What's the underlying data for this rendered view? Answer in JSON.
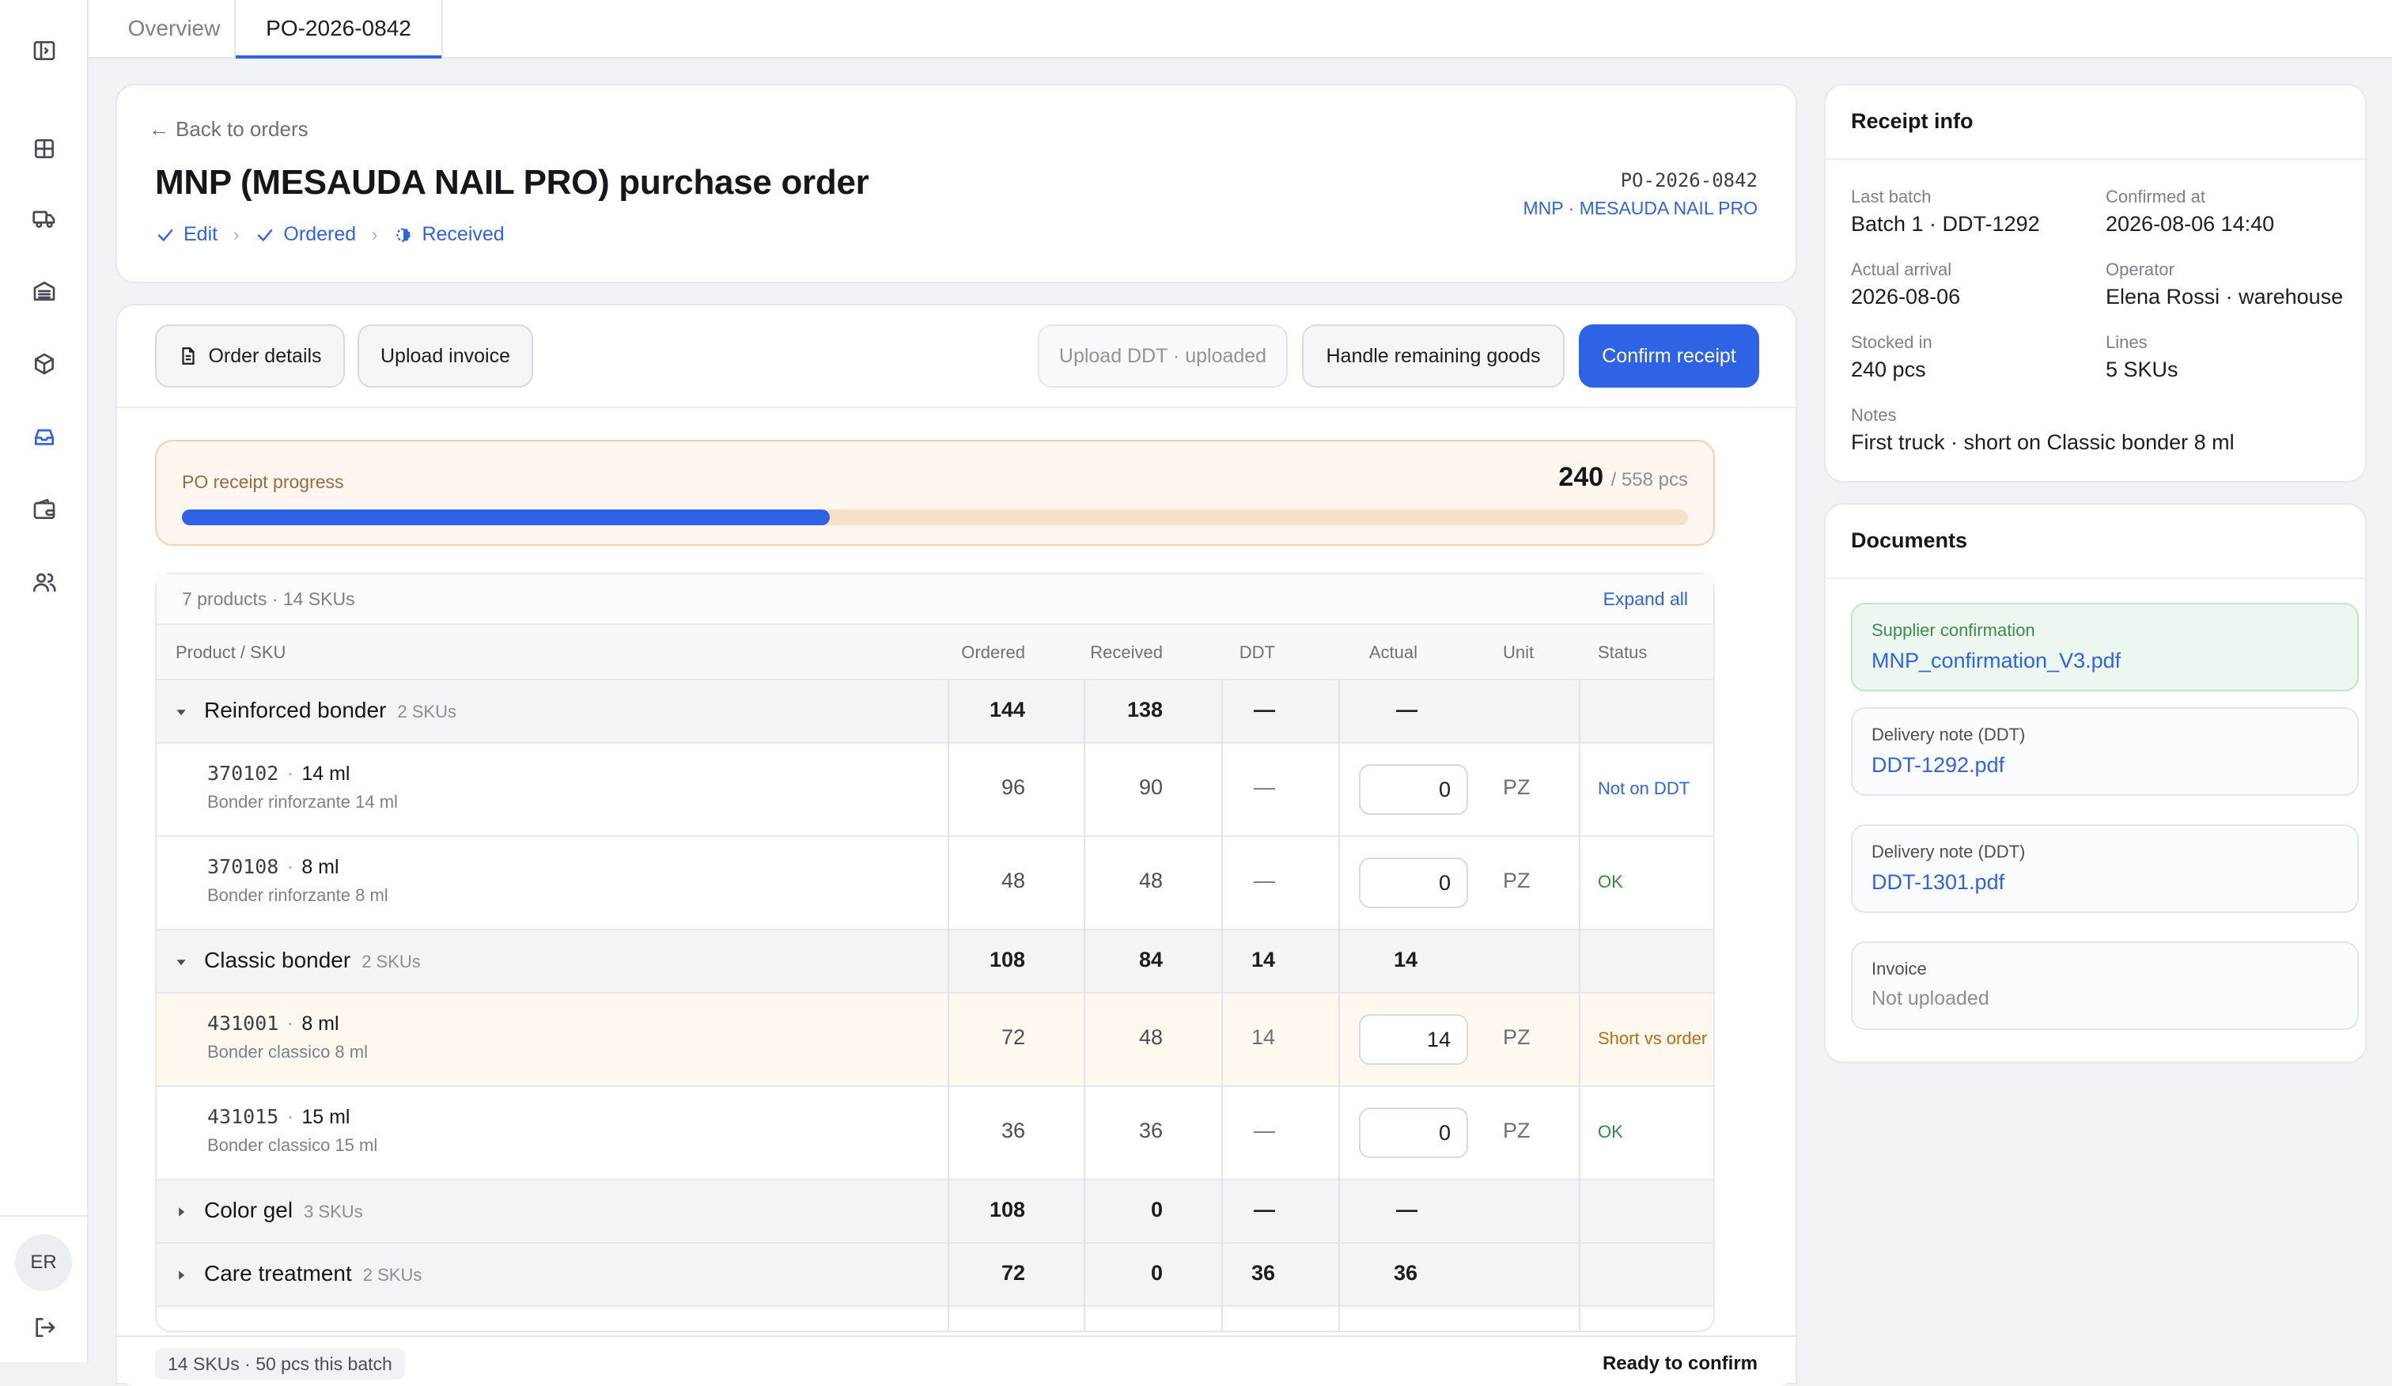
{
  "sidebar": {
    "icons": [
      "sidebar-toggle-icon",
      "dashboard-icon",
      "truck-icon",
      "warehouse-icon",
      "box-icon",
      "inbox-icon",
      "wallet-icon",
      "users-icon",
      "logout-icon"
    ],
    "active": "inbox-icon",
    "avatar": "ER"
  },
  "tabs": [
    {
      "label": "Overview"
    },
    {
      "label": "PO-2026-0842"
    }
  ],
  "header": {
    "back_label": "Back to orders",
    "title": "MNP (MESAUDA NAIL PRO) purchase order",
    "steps": [
      "Edit",
      "Ordered",
      "Received"
    ],
    "po_number": "PO-2026-0842",
    "supplier": "MNP · MESAUDA NAIL PRO"
  },
  "actions": {
    "order_details": "Order details",
    "upload_invoice": "Upload invoice",
    "upload_ddt": "Upload DDT · uploaded",
    "handle_remaining": "Handle remaining goods",
    "confirm_receipt": "Confirm receipt"
  },
  "progress": {
    "label": "PO receipt progress",
    "received": 240,
    "received_text": "240",
    "total_text": "/ 558 pcs",
    "total": 558
  },
  "table": {
    "summary": "7 products · 14 SKUs",
    "expand_all": "Expand all",
    "columns": {
      "product": "Product / SKU",
      "ordered": "Ordered",
      "received": "Received",
      "ddt": "DDT",
      "actual": "Actual",
      "unit": "Unit",
      "status": "Status"
    },
    "groups": [
      {
        "name": "Reinforced bonder",
        "count": "2 SKUs",
        "ordered": "144",
        "received": "138",
        "ddt": "—",
        "actual": "—",
        "skus": [
          {
            "code": "370102",
            "size": "14 ml",
            "desc": "Bonder rinforzante 14 ml",
            "ordered": "96",
            "received": "90",
            "ddt": "—",
            "actual": "0",
            "unit": "PZ",
            "status": "Not on DDT"
          },
          {
            "code": "370108",
            "size": "8 ml",
            "desc": "Bonder rinforzante 8 ml",
            "ordered": "48",
            "received": "48",
            "ddt": "—",
            "actual": "0",
            "unit": "PZ",
            "status": "OK"
          }
        ]
      },
      {
        "name": "Classic bonder",
        "count": "2 SKUs",
        "ordered": "108",
        "received": "84",
        "ddt": "14",
        "actual": "14",
        "skus": [
          {
            "code": "431001",
            "size": "8 ml",
            "desc": "Bonder classico 8 ml",
            "ordered": "72",
            "received": "48",
            "ddt": "14",
            "actual": "14",
            "unit": "PZ",
            "status": "Short vs order"
          },
          {
            "code": "431015",
            "size": "15 ml",
            "desc": "Bonder classico 15 ml",
            "ordered": "36",
            "received": "36",
            "ddt": "—",
            "actual": "0",
            "unit": "PZ",
            "status": "OK"
          }
        ]
      },
      {
        "name": "Color gel",
        "count": "3 SKUs",
        "ordered": "108",
        "received": "0",
        "ddt": "—",
        "actual": "—"
      },
      {
        "name": "Care treatment",
        "count": "2 SKUs",
        "ordered": "72",
        "received": "0",
        "ddt": "36",
        "actual": "36"
      }
    ]
  },
  "footer": {
    "summary": "14 SKUs · 50 pcs this batch",
    "ready": "Ready to confirm"
  },
  "receipt_info": {
    "title": "Receipt info",
    "last_batch_label": "Last batch",
    "last_batch": "Batch 1 · DDT-1292",
    "confirmed_at_label": "Confirmed at",
    "confirmed_at": "2026-08-06 14:40",
    "arrival_label": "Actual arrival",
    "arrival": "2026-08-06",
    "operator_label": "Operator",
    "operator": "Elena Rossi · warehouse",
    "stocked_label": "Stocked in",
    "stocked": "240 pcs",
    "lines_label": "Lines",
    "lines": "5 SKUs",
    "notes_label": "Notes",
    "notes": "First truck · short on Classic bonder 8 ml"
  },
  "documents": {
    "title": "Documents",
    "items": [
      {
        "type": "Supplier confirmation",
        "file": "MNP_confirmation_V3.pdf"
      },
      {
        "type": "Delivery note (DDT)",
        "file": "DDT-1292.pdf"
      },
      {
        "type": "Delivery note (DDT)",
        "file": "DDT-1301.pdf"
      },
      {
        "type": "Invoice",
        "file": "Not uploaded"
      }
    ]
  },
  "colors": {
    "accent": "#2f63e6",
    "ok": "#2f8a3e",
    "warn": "#b86a16",
    "info": "#2f63e6"
  }
}
